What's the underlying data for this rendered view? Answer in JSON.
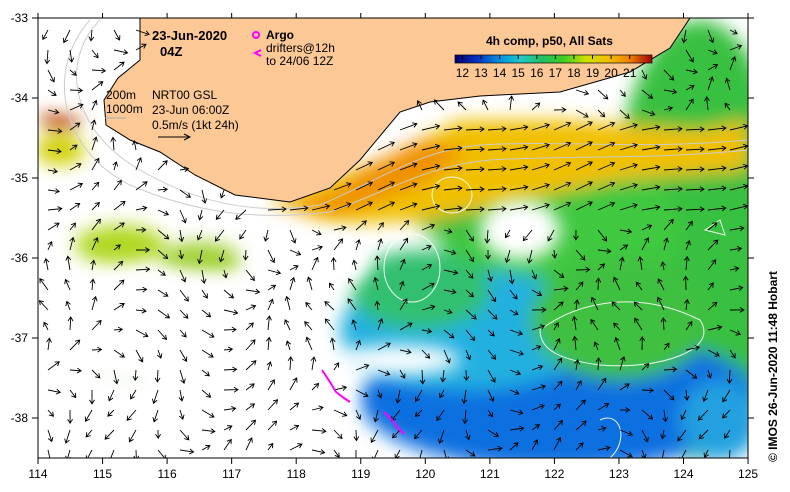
{
  "title": {
    "date": "23-Jun-2020",
    "hour": "04Z"
  },
  "legend": {
    "argo_label": "Argo",
    "drifters_line1": "drifters@12h",
    "drifters_line2": "to 24/06 12Z",
    "argo_color": "#ff00ff"
  },
  "contours": {
    "c200": "200m",
    "c1000": "1000m"
  },
  "current_info": {
    "line1": "NRT00 GSL",
    "line2": "23-Jun 06:00Z",
    "line3": "0.5m/s (1kt 24h)"
  },
  "colorbar": {
    "title": "4h comp, p50, All Sats",
    "ticks": [
      "12",
      "13",
      "14",
      "15",
      "16",
      "17",
      "18",
      "19",
      "20",
      "21"
    ],
    "range": [
      11.6,
      22.2
    ],
    "colors": [
      "#00006e",
      "#0030c0",
      "#0090e0",
      "#20c8c8",
      "#20c060",
      "#40d020",
      "#d0e000",
      "#f0c000",
      "#f08000",
      "#a00000"
    ]
  },
  "axes": {
    "x_ticks": [
      "114",
      "115",
      "116",
      "117",
      "118",
      "119",
      "120",
      "121",
      "122",
      "123",
      "124",
      "125"
    ],
    "y_ticks": [
      "-33",
      "-34",
      "-35",
      "-36",
      "-37",
      "-38"
    ]
  },
  "credit": "© IMOS 26-Jun-2020 11:48 Hobart",
  "land_color": "#fcc896"
}
